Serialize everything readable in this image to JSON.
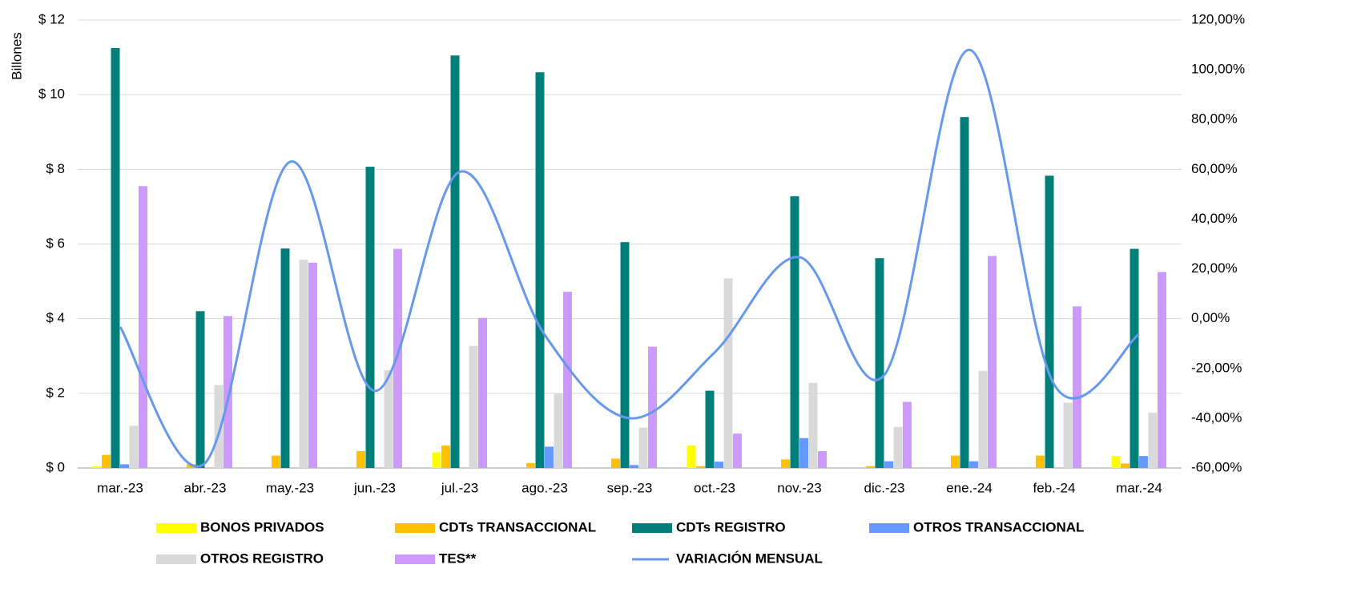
{
  "chart_data": {
    "type": "bar",
    "y_label": "Billones",
    "categories": [
      "mar.-23",
      "abr.-23",
      "may.-23",
      "jun.-23",
      "jul.-23",
      "ago.-23",
      "sep.-23",
      "oct.-23",
      "nov.-23",
      "dic.-23",
      "ene.-24",
      "feb.-24",
      "mar.-24"
    ],
    "series": [
      {
        "name": "BONOS PRIVADOS",
        "color": "#ffff00",
        "values": [
          0.05,
          0,
          0,
          0,
          0.42,
          0,
          0,
          0.6,
          0,
          0,
          0,
          0,
          0.32
        ]
      },
      {
        "name": "CDTs TRANSACCIONAL",
        "color": "#ffc000",
        "values": [
          0.35,
          0.1,
          0.33,
          0.45,
          0.6,
          0.13,
          0.25,
          0.05,
          0.23,
          0.05,
          0.33,
          0.33,
          0.12
        ]
      },
      {
        "name": "CDTs REGISTRO",
        "color": "#007f7a",
        "values": [
          11.25,
          4.2,
          5.88,
          8.07,
          11.05,
          10.6,
          6.05,
          2.07,
          7.28,
          5.62,
          9.4,
          7.83,
          5.87
        ]
      },
      {
        "name": "OTROS TRANSACCIONAL",
        "color": "#6699ff",
        "values": [
          0.1,
          0,
          0,
          0,
          0,
          0.57,
          0.08,
          0.17,
          0.8,
          0.18,
          0.18,
          0,
          0.32
        ]
      },
      {
        "name": "OTROS REGISTRO",
        "color": "#d9d9d9",
        "values": [
          1.13,
          2.22,
          5.58,
          2.62,
          3.27,
          2.0,
          1.08,
          5.08,
          2.28,
          1.1,
          2.6,
          1.75,
          1.48
        ]
      },
      {
        "name": "TES**",
        "color": "#cc99ff",
        "values": [
          7.55,
          4.07,
          5.5,
          5.87,
          4.02,
          4.72,
          3.25,
          0.92,
          0.45,
          1.77,
          5.68,
          4.33,
          5.25
        ]
      },
      {
        "name": "VARIACIÓN MENSUAL",
        "color": "#6699ee",
        "type": "line",
        "axis": "y2",
        "values": [
          -3.3,
          -58,
          63,
          -29,
          59,
          -6.5,
          -40,
          -13.6,
          24.7,
          -22.6,
          108,
          -26.5,
          -6.2
        ]
      }
    ],
    "ylim": [
      0,
      12
    ],
    "yticks": [
      {
        "value": 0,
        "label": "$ 0"
      },
      {
        "value": 2,
        "label": "$ 2"
      },
      {
        "value": 4,
        "label": "$ 4"
      },
      {
        "value": 6,
        "label": "$ 6"
      },
      {
        "value": 8,
        "label": "$ 8"
      },
      {
        "value": 10,
        "label": "$ 10"
      },
      {
        "value": 12,
        "label": "$ 12"
      }
    ],
    "y2lim": [
      -60,
      120
    ],
    "y2ticks": [
      {
        "value": -60,
        "label": "-60,00%"
      },
      {
        "value": -40,
        "label": "-40,00%"
      },
      {
        "value": -20,
        "label": "-20,00%"
      },
      {
        "value": 0,
        "label": "0,00%"
      },
      {
        "value": 20,
        "label": "20,00%"
      },
      {
        "value": 40,
        "label": "40,00%"
      },
      {
        "value": 60,
        "label": "60,00%"
      },
      {
        "value": 80,
        "label": "80,00%"
      },
      {
        "value": 100,
        "label": "100,00%"
      },
      {
        "value": 120,
        "label": "120,00%"
      }
    ],
    "grid": true,
    "legend": "bottom"
  }
}
